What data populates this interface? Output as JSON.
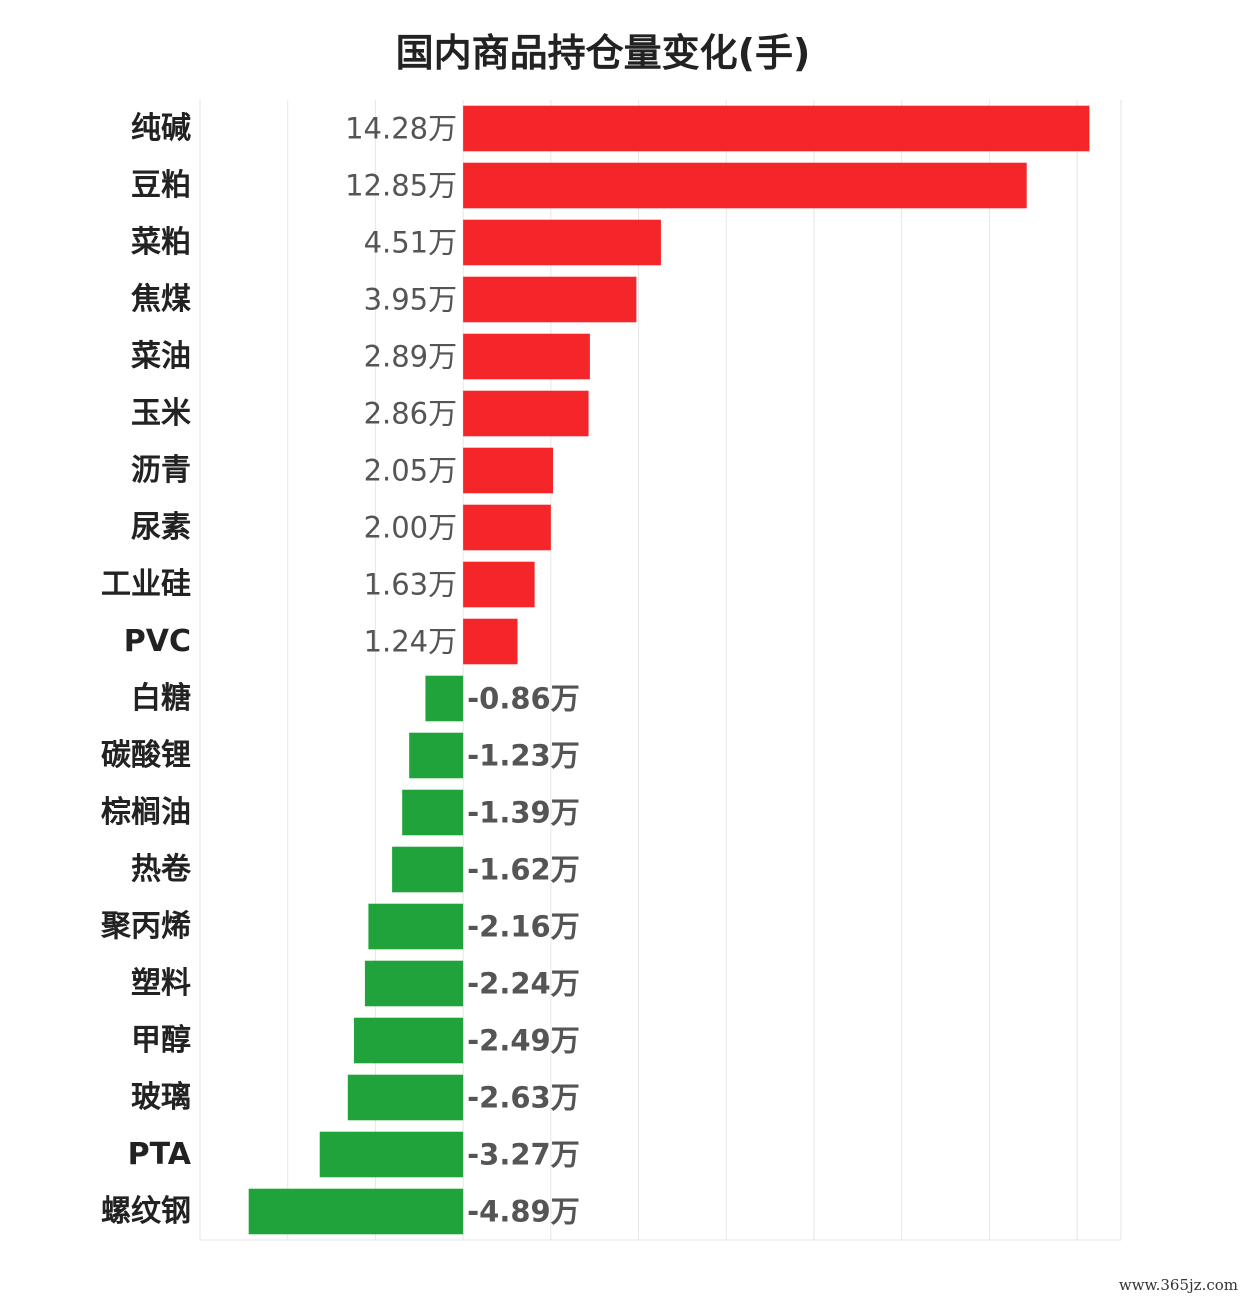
{
  "chart_data": {
    "type": "bar",
    "orientation": "horizontal",
    "title": "国内商品持仓量变化(手)",
    "unit_suffix": "万",
    "categories": [
      "纯碱",
      "豆粕",
      "菜粕",
      "焦煤",
      "菜油",
      "玉米",
      "沥青",
      "尿素",
      "工业硅",
      "PVC",
      "白糖",
      "碳酸锂",
      "棕榈油",
      "热卷",
      "聚丙烯",
      "塑料",
      "甲醇",
      "玻璃",
      "PTA",
      "螺纹钢"
    ],
    "values": [
      14.28,
      12.85,
      4.51,
      3.95,
      2.89,
      2.86,
      2.05,
      2.0,
      1.63,
      1.24,
      -0.86,
      -1.23,
      -1.39,
      -1.62,
      -2.16,
      -2.24,
      -2.49,
      -2.63,
      -3.27,
      -4.89
    ],
    "value_labels": [
      "14.28万",
      "12.85万",
      "4.51万",
      "3.95万",
      "2.89万",
      "2.86万",
      "2.05万",
      "2.00万",
      "1.63万",
      "1.24万",
      "-0.86万",
      "-1.23万",
      "-1.39万",
      "-1.62万",
      "-2.16万",
      "-2.24万",
      "-2.49万",
      "-2.63万",
      "-3.27万",
      "-4.89万"
    ],
    "xlim": [
      -6,
      15
    ],
    "grid": true,
    "positive_color": "#f5262a",
    "negative_color": "#21a33c"
  },
  "watermark": "www.365jz.com"
}
